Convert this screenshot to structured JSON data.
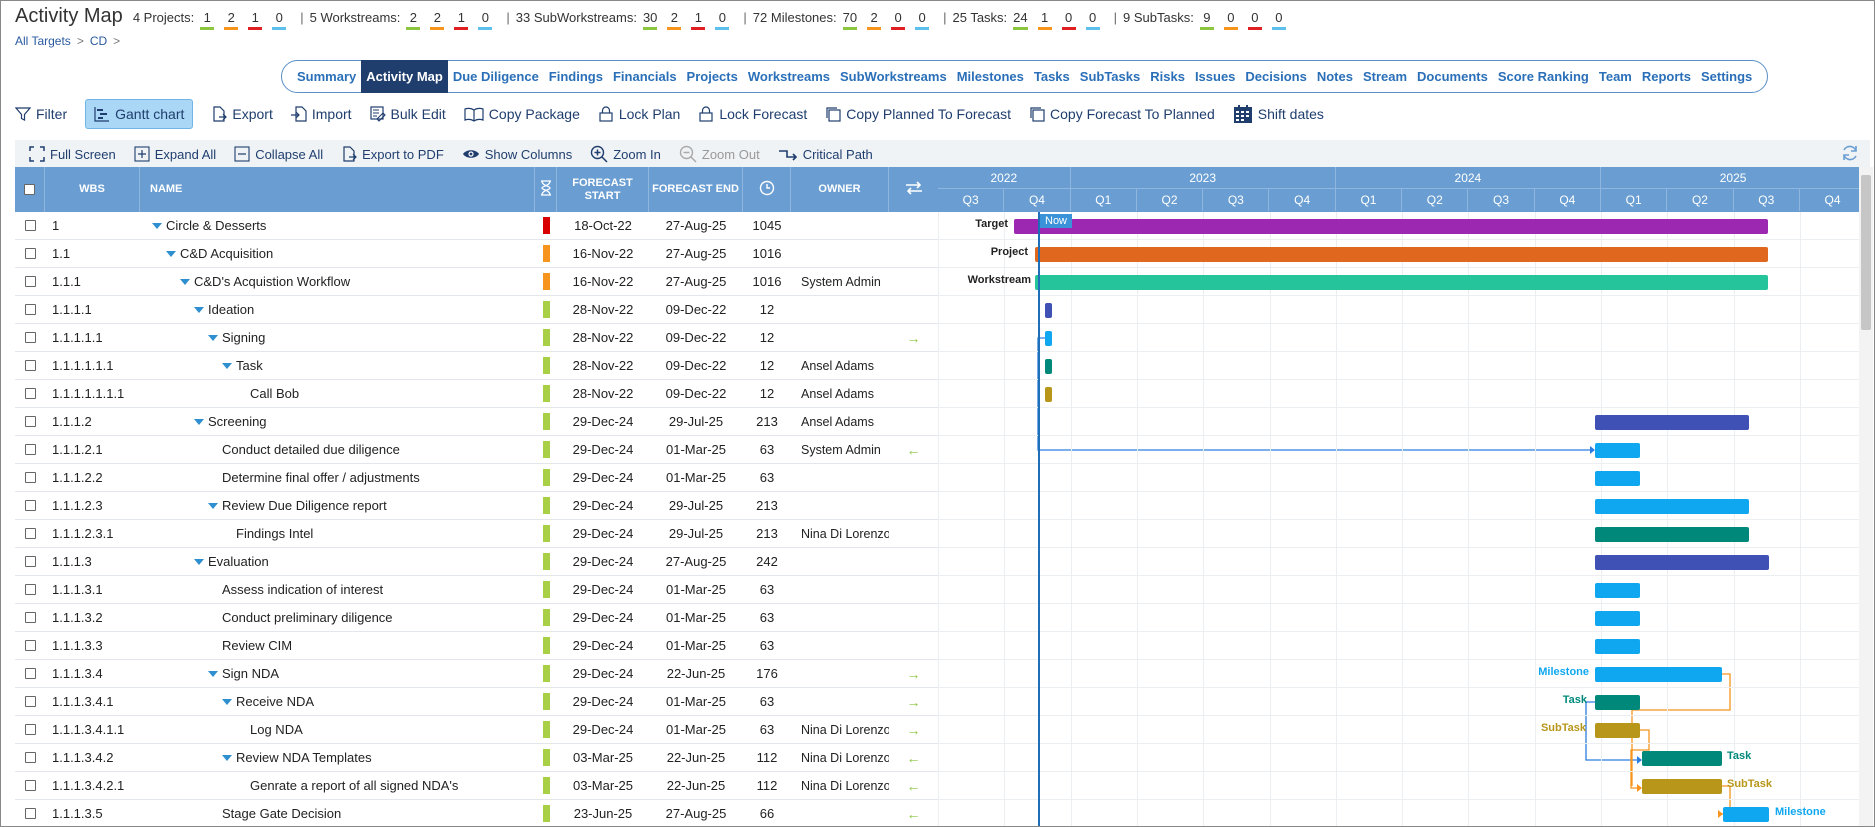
{
  "header": {
    "title": "Activity Map",
    "stats": [
      {
        "label": "4 Projects:",
        "nums": [
          "1",
          "2",
          "1",
          "0"
        ]
      },
      {
        "label": "5 Workstreams:",
        "nums": [
          "2",
          "2",
          "1",
          "0"
        ]
      },
      {
        "label": "33 SubWorkstreams:",
        "nums": [
          "30",
          "2",
          "1",
          "0"
        ]
      },
      {
        "label": "72 Milestones:",
        "nums": [
          "70",
          "2",
          "0",
          "0"
        ]
      },
      {
        "label": "25 Tasks:",
        "nums": [
          "24",
          "1",
          "0",
          "0"
        ]
      },
      {
        "label": "9 SubTasks:",
        "nums": [
          "9",
          "0",
          "0",
          "0"
        ]
      }
    ],
    "stat_colors": [
      "#8cc63f",
      "#f7941d",
      "#e02020",
      "#5bc0eb"
    ]
  },
  "breadcrumb": {
    "root": "All Targets",
    "current": "CD"
  },
  "nav": {
    "tabs": [
      "Summary",
      "Activity Map",
      "Due Diligence",
      "Findings",
      "Financials",
      "Projects",
      "Workstreams",
      "SubWorkstreams",
      "Milestones",
      "Tasks",
      "SubTasks",
      "Risks",
      "Issues",
      "Decisions",
      "Notes",
      "Stream",
      "Documents",
      "Score Ranking",
      "Team",
      "Reports",
      "Settings"
    ],
    "active": "Activity Map"
  },
  "toolbar": {
    "filter": "Filter",
    "gantt": "Gantt chart",
    "export": "Export",
    "import": "Import",
    "bulk_edit": "Bulk Edit",
    "copy_package": "Copy Package",
    "lock_plan": "Lock Plan",
    "lock_forecast": "Lock Forecast",
    "copy_planned": "Copy Planned To Forecast",
    "copy_forecast": "Copy Forecast To Planned",
    "shift_dates": "Shift dates"
  },
  "gantt_toolbar": {
    "full_screen": "Full Screen",
    "expand_all": "Expand All",
    "collapse_all": "Collapse All",
    "export_pdf": "Export to PDF",
    "show_columns": "Show Columns",
    "zoom_in": "Zoom In",
    "zoom_out": "Zoom Out",
    "critical_path": "Critical Path"
  },
  "grid": {
    "columns": {
      "wbs": "WBS",
      "name": "NAME",
      "forecast_start": "FORECAST START",
      "forecast_end": "FORECAST END",
      "owner": "OWNER"
    },
    "rows": [
      {
        "wbs": "1",
        "name": "Circle & Desserts",
        "level": 0,
        "expand": true,
        "flag": "#d80000",
        "start": "18-Oct-22",
        "end": "27-Aug-25",
        "dur": "1045",
        "owner": "",
        "dep": ""
      },
      {
        "wbs": "1.1",
        "name": "C&D Acquisition",
        "level": 1,
        "expand": true,
        "flag": "#f7941d",
        "start": "16-Nov-22",
        "end": "27-Aug-25",
        "dur": "1016",
        "owner": "",
        "dep": ""
      },
      {
        "wbs": "1.1.1",
        "name": "C&D's Acquistion Workflow",
        "level": 2,
        "expand": true,
        "flag": "#f7941d",
        "start": "16-Nov-22",
        "end": "27-Aug-25",
        "dur": "1016",
        "owner": "System Admin",
        "dep": ""
      },
      {
        "wbs": "1.1.1.1",
        "name": "Ideation",
        "level": 3,
        "expand": true,
        "flag": "#a9cf46",
        "start": "28-Nov-22",
        "end": "09-Dec-22",
        "dur": "12",
        "owner": "",
        "dep": ""
      },
      {
        "wbs": "1.1.1.1.1",
        "name": "Signing",
        "level": 4,
        "expand": true,
        "flag": "#a9cf46",
        "start": "28-Nov-22",
        "end": "09-Dec-22",
        "dur": "12",
        "owner": "",
        "dep": "→"
      },
      {
        "wbs": "1.1.1.1.1.1",
        "name": "Task",
        "level": 5,
        "expand": true,
        "flag": "#a9cf46",
        "start": "28-Nov-22",
        "end": "09-Dec-22",
        "dur": "12",
        "owner": "Ansel Adams",
        "dep": ""
      },
      {
        "wbs": "1.1.1.1.1.1.1",
        "name": "Call Bob",
        "level": 6,
        "expand": false,
        "flag": "#a9cf46",
        "start": "28-Nov-22",
        "end": "09-Dec-22",
        "dur": "12",
        "owner": "Ansel Adams",
        "dep": ""
      },
      {
        "wbs": "1.1.1.2",
        "name": "Screening",
        "level": 3,
        "expand": true,
        "flag": "#a9cf46",
        "start": "29-Dec-24",
        "end": "29-Jul-25",
        "dur": "213",
        "owner": "Ansel Adams",
        "dep": ""
      },
      {
        "wbs": "1.1.1.2.1",
        "name": "Conduct detailed due diligence",
        "level": 4,
        "expand": false,
        "flag": "#a9cf46",
        "start": "29-Dec-24",
        "end": "01-Mar-25",
        "dur": "63",
        "owner": "System Admin",
        "dep": "←"
      },
      {
        "wbs": "1.1.1.2.2",
        "name": "Determine final offer / adjustments",
        "level": 4,
        "expand": false,
        "flag": "#a9cf46",
        "start": "29-Dec-24",
        "end": "01-Mar-25",
        "dur": "63",
        "owner": "",
        "dep": ""
      },
      {
        "wbs": "1.1.1.2.3",
        "name": "Review Due Diligence report",
        "level": 4,
        "expand": true,
        "flag": "#a9cf46",
        "start": "29-Dec-24",
        "end": "29-Jul-25",
        "dur": "213",
        "owner": "",
        "dep": ""
      },
      {
        "wbs": "1.1.1.2.3.1",
        "name": "Findings Intel",
        "level": 5,
        "expand": false,
        "flag": "#a9cf46",
        "start": "29-Dec-24",
        "end": "29-Jul-25",
        "dur": "213",
        "owner": "Nina Di Lorenzo",
        "dep": ""
      },
      {
        "wbs": "1.1.1.3",
        "name": "Evaluation",
        "level": 3,
        "expand": true,
        "flag": "#a9cf46",
        "start": "29-Dec-24",
        "end": "27-Aug-25",
        "dur": "242",
        "owner": "",
        "dep": ""
      },
      {
        "wbs": "1.1.1.3.1",
        "name": "Assess indication of interest",
        "level": 4,
        "expand": false,
        "flag": "#a9cf46",
        "start": "29-Dec-24",
        "end": "01-Mar-25",
        "dur": "63",
        "owner": "",
        "dep": ""
      },
      {
        "wbs": "1.1.1.3.2",
        "name": "Conduct preliminary diligence",
        "level": 4,
        "expand": false,
        "flag": "#a9cf46",
        "start": "29-Dec-24",
        "end": "01-Mar-25",
        "dur": "63",
        "owner": "",
        "dep": ""
      },
      {
        "wbs": "1.1.1.3.3",
        "name": "Review CIM",
        "level": 4,
        "expand": false,
        "flag": "#a9cf46",
        "start": "29-Dec-24",
        "end": "01-Mar-25",
        "dur": "63",
        "owner": "",
        "dep": ""
      },
      {
        "wbs": "1.1.1.3.4",
        "name": "Sign NDA",
        "level": 4,
        "expand": true,
        "flag": "#a9cf46",
        "start": "29-Dec-24",
        "end": "22-Jun-25",
        "dur": "176",
        "owner": "",
        "dep": "→"
      },
      {
        "wbs": "1.1.1.3.4.1",
        "name": "Receive NDA",
        "level": 5,
        "expand": true,
        "flag": "#a9cf46",
        "start": "29-Dec-24",
        "end": "01-Mar-25",
        "dur": "63",
        "owner": "",
        "dep": "→"
      },
      {
        "wbs": "1.1.1.3.4.1.1",
        "name": "Log NDA",
        "level": 6,
        "expand": false,
        "flag": "#a9cf46",
        "start": "29-Dec-24",
        "end": "01-Mar-25",
        "dur": "63",
        "owner": "Nina Di Lorenzo",
        "dep": "→"
      },
      {
        "wbs": "1.1.1.3.4.2",
        "name": "Review NDA Templates",
        "level": 5,
        "expand": true,
        "flag": "#a9cf46",
        "start": "03-Mar-25",
        "end": "22-Jun-25",
        "dur": "112",
        "owner": "Nina Di Lorenzo",
        "dep": "←"
      },
      {
        "wbs": "1.1.1.3.4.2.1",
        "name": "Genrate a report of all signed NDA's",
        "level": 6,
        "expand": false,
        "flag": "#a9cf46",
        "start": "03-Mar-25",
        "end": "22-Jun-25",
        "dur": "112",
        "owner": "Nina Di Lorenzo",
        "dep": "←"
      },
      {
        "wbs": "1.1.1.3.5",
        "name": "Stage Gate Decision",
        "level": 4,
        "expand": false,
        "flag": "#a9cf46",
        "start": "23-Jun-25",
        "end": "27-Aug-25",
        "dur": "66",
        "owner": "",
        "dep": "←"
      }
    ]
  },
  "timeline": {
    "years": [
      "2022",
      "2023",
      "2024",
      "2025"
    ],
    "quarters": [
      "Q3",
      "Q4",
      "Q1",
      "Q2",
      "Q3",
      "Q4",
      "Q1",
      "Q2",
      "Q3",
      "Q4",
      "Q1",
      "Q2",
      "Q3",
      "Q4"
    ],
    "now_label": "Now",
    "labels": {
      "target": "Target",
      "project": "Project",
      "workstream": "Workstream",
      "milestone": "Milestone",
      "task": "Task",
      "subtask": "SubTask"
    },
    "colors": {
      "target": "#9c27b0",
      "project": "#e0681e",
      "workstream": "#26c49a",
      "milestone_dark": "#3f51b5",
      "milestone": "#0fa8f0",
      "task": "#00897b",
      "subtask": "#b8961a",
      "link_blue": "#2b7de0",
      "link_orange": "#f7941d"
    }
  }
}
